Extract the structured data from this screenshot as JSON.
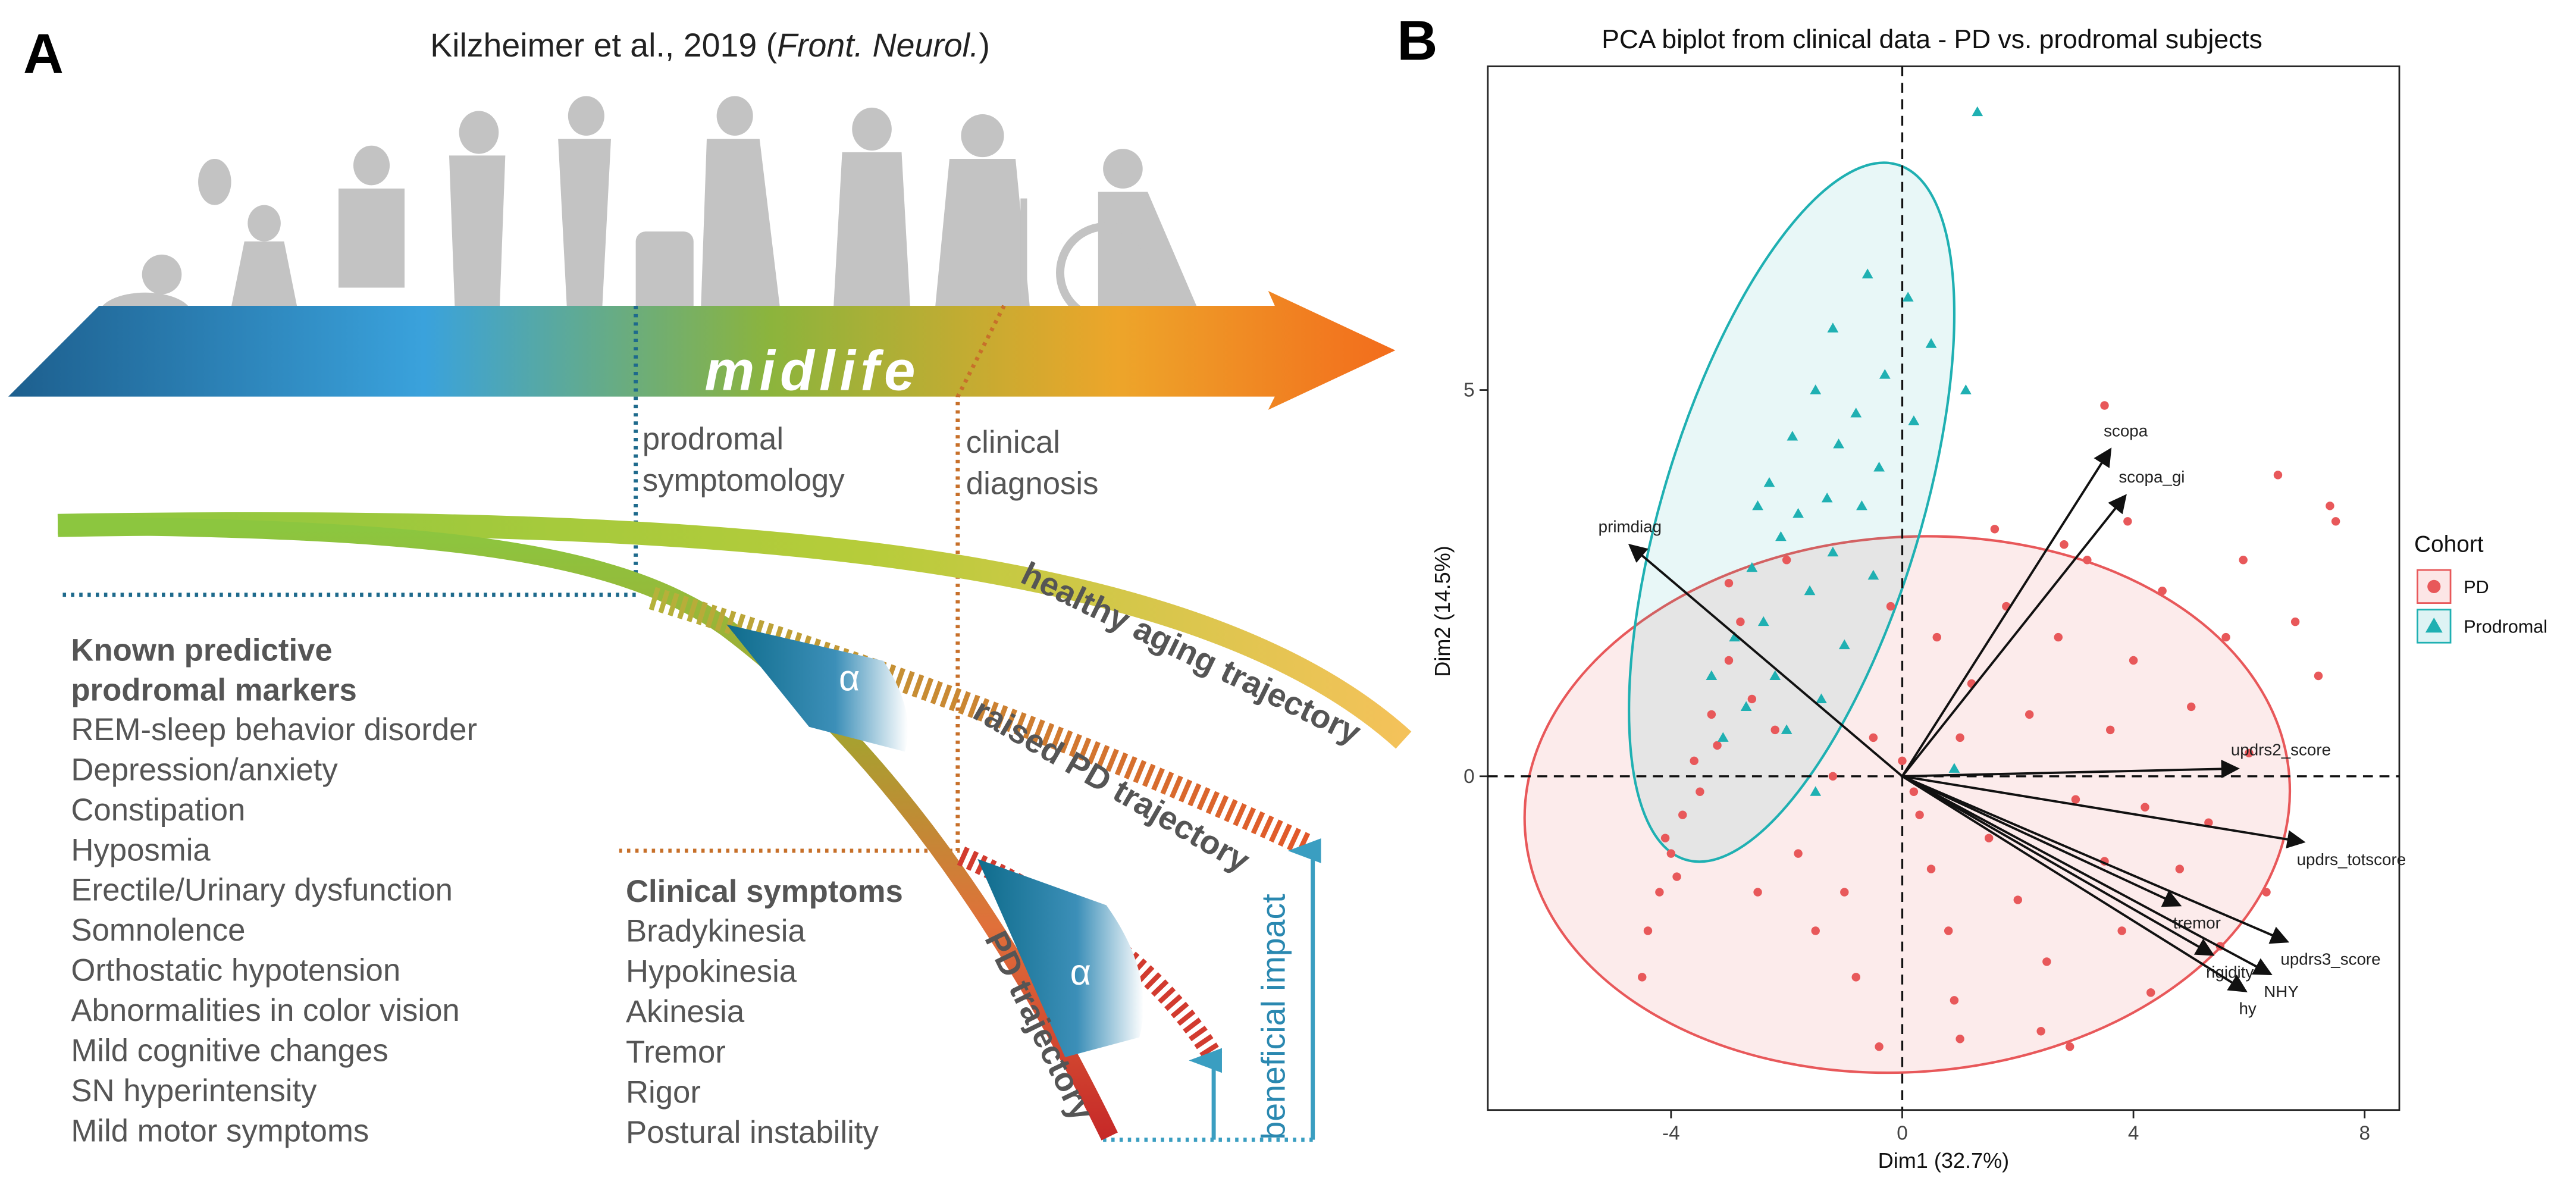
{
  "panel_a": {
    "label": "A",
    "title": {
      "prefix": "Kilzheimer et al., 2019 (",
      "journal": "Front. Neurol.",
      "suffix": ")"
    },
    "midlife": "midlife",
    "prodromal_symptomology": [
      "prodromal",
      "symptomology"
    ],
    "clinical_diagnosis": [
      "clinical",
      "diagnosis"
    ],
    "healthy_aging_trajectory": "healthy aging trajectory",
    "raised_pd_trajectory": "raised PD trajectory",
    "pd_trajectory": "PD trajectory",
    "beneficial_impact": "beneficial impact",
    "alpha": "α",
    "prodromal_markers": {
      "heading": [
        "Known predictive",
        "prodromal markers"
      ],
      "items": [
        "REM-sleep behavior disorder",
        "Depression/anxiety",
        "Constipation",
        "Hyposmia",
        "Erectile/Urinary dysfunction",
        "Somnolence",
        "Orthostatic hypotension",
        "Abnormalities in color vision",
        "Mild cognitive changes",
        "SN hyperintensity",
        "Mild motor symptoms"
      ]
    },
    "clinical_symptoms": {
      "heading": "Clinical symptoms",
      "items": [
        "Bradykinesia",
        "Hypokinesia",
        "Akinesia",
        "Tremor",
        "Rigor",
        "Postural instability"
      ]
    }
  },
  "panel_b_label": "B",
  "chart_data": {
    "type": "scatter",
    "title": "PCA biplot from clinical data - PD vs. prodromal subjects",
    "x_label": "Dim1 (32.7%)",
    "y_label": "Dim2 (14.5%)",
    "xlim": [
      -7.17,
      8.6
    ],
    "ylim": [
      -4.32,
      9.19
    ],
    "xticks": [
      -4,
      0,
      4,
      8
    ],
    "yticks": [
      0,
      5
    ],
    "legend_title": "Cohort",
    "legend_position": "right",
    "series": [
      {
        "name": "PD",
        "color": "#e8585a",
        "marker": "circle",
        "x": [
          -4.2,
          -4.0,
          -3.8,
          -4.4,
          -4.5,
          -3.9,
          -3.6,
          -3.3,
          -3.0,
          -2.8,
          -3.5,
          -4.1,
          -3.2,
          -2.6,
          -2.2,
          -1.8,
          -1.5,
          -1.0,
          -0.8,
          -0.5,
          -1.2,
          -0.4,
          0.3,
          0.5,
          0.8,
          1.0,
          1.2,
          1.5,
          1.8,
          2.0,
          2.2,
          2.5,
          2.7,
          3.0,
          3.2,
          3.5,
          3.6,
          3.8,
          4.0,
          4.2,
          4.5,
          4.8,
          5.0,
          5.3,
          5.6,
          6.0,
          6.3,
          6.8,
          7.2,
          3.5,
          6.5,
          7.4,
          7.5,
          1.0,
          2.4,
          2.9,
          0.0,
          0.2,
          -0.2,
          1.6,
          2.8,
          4.3,
          5.5,
          0.6,
          -2.0,
          -3.0,
          -2.5,
          0.9,
          3.9,
          5.9
        ],
        "y": [
          -1.5,
          -1.0,
          -0.5,
          -2.0,
          -2.6,
          -1.3,
          0.2,
          0.8,
          1.5,
          2.0,
          -0.2,
          -0.8,
          0.4,
          1.0,
          0.6,
          -1.0,
          -2.0,
          -1.5,
          -2.6,
          0.5,
          0.0,
          -3.5,
          -0.5,
          -1.2,
          -2.0,
          0.5,
          1.2,
          -0.8,
          2.2,
          -1.6,
          0.8,
          -2.4,
          1.8,
          -0.3,
          2.8,
          -1.1,
          0.6,
          -2.0,
          1.5,
          -0.4,
          2.4,
          -1.2,
          0.9,
          -0.6,
          1.8,
          0.3,
          -1.5,
          2.0,
          1.3,
          4.8,
          3.9,
          3.5,
          3.3,
          -3.4,
          -3.3,
          -3.5,
          0.2,
          -0.2,
          2.2,
          3.2,
          3.0,
          -2.8,
          -2.2,
          1.8,
          2.8,
          2.5,
          -1.5,
          -2.9,
          3.3,
          2.8
        ]
      },
      {
        "name": "Prodromal",
        "color": "#1fb0b2",
        "marker": "triangle",
        "x": [
          1.3,
          -0.6,
          0.1,
          -1.2,
          0.5,
          -0.3,
          1.1,
          -1.5,
          -0.8,
          0.2,
          -1.9,
          -1.1,
          -0.4,
          -2.3,
          -1.3,
          -0.7,
          -1.8,
          -2.1,
          -1.2,
          -2.6,
          -1.6,
          -2.4,
          -2.9,
          -1.0,
          -2.2,
          -2.7,
          -1.4,
          -3.1,
          -2.0,
          -1.5,
          0.9,
          -3.3,
          -0.5,
          -2.5
        ],
        "y": [
          8.6,
          6.5,
          6.2,
          5.8,
          5.6,
          5.2,
          5.0,
          5.0,
          4.7,
          4.6,
          4.4,
          4.3,
          4.0,
          3.8,
          3.6,
          3.5,
          3.4,
          3.1,
          2.9,
          2.7,
          2.4,
          2.0,
          1.8,
          1.7,
          1.3,
          0.9,
          1.0,
          0.5,
          0.6,
          -0.2,
          0.1,
          1.3,
          2.6,
          3.5
        ]
      }
    ],
    "loadings": {
      "names": [
        "primdiag",
        "scopa",
        "scopa_gi",
        "updrs2_score",
        "updrs_totscore",
        "tremor",
        "updrs3_score",
        "NHY",
        "rigidity",
        "hy"
      ],
      "x": [
        -4.71,
        3.6,
        3.86,
        5.8,
        6.94,
        4.8,
        6.66,
        6.37,
        5.37,
        5.94
      ],
      "y": [
        2.99,
        4.23,
        3.63,
        0.1,
        -0.85,
        -1.67,
        -2.14,
        -2.56,
        -2.31,
        -2.78
      ]
    }
  }
}
